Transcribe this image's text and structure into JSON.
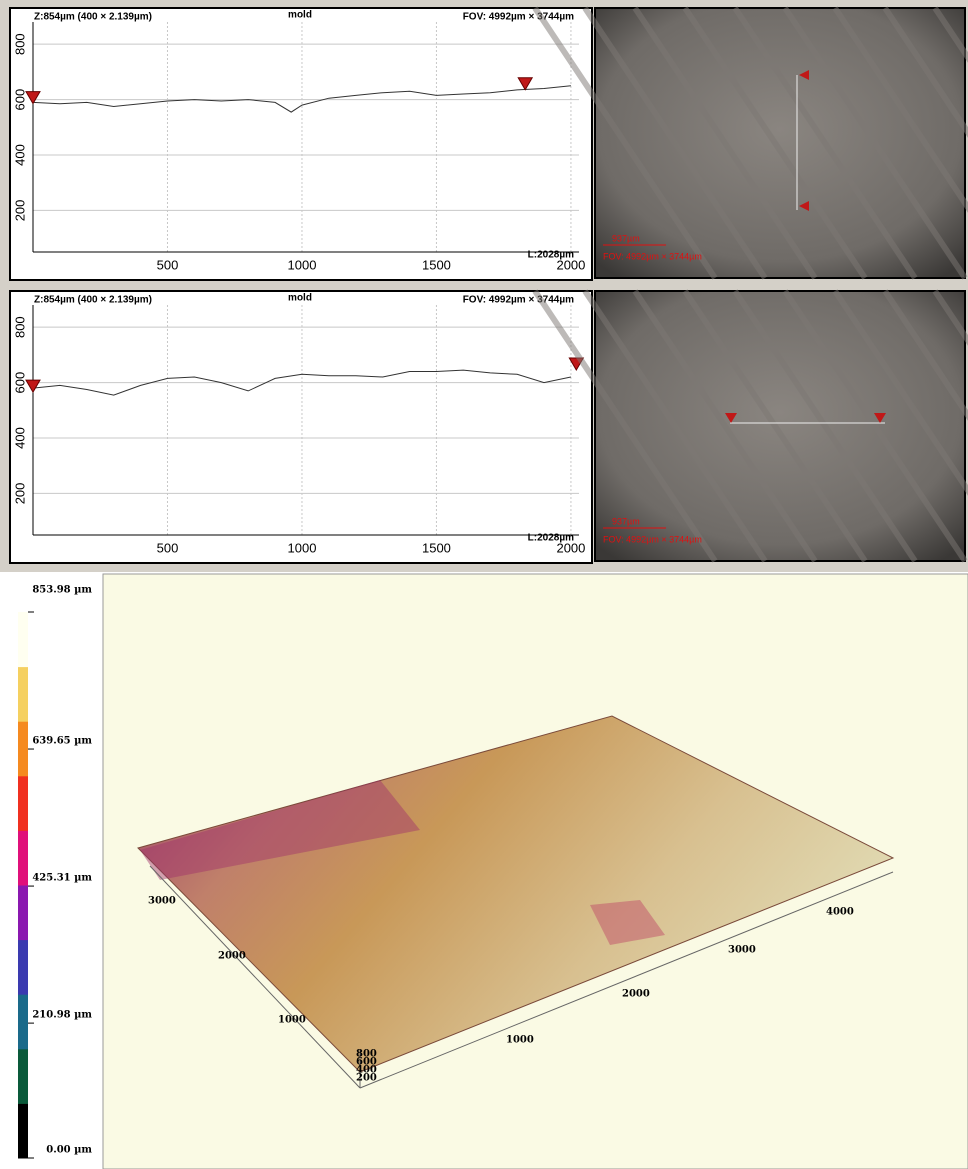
{
  "chart_data": [
    {
      "type": "line",
      "header_left": "Z:854µm (400 × 2.139µm)",
      "title": "mold",
      "header_right": "FOV: 4992µm × 3744µm",
      "length_label": "L:2028µm",
      "x": [
        0,
        100,
        200,
        300,
        400,
        500,
        600,
        700,
        800,
        900,
        960,
        1000,
        1100,
        1200,
        1300,
        1400,
        1500,
        1600,
        1700,
        1800,
        1900,
        2000
      ],
      "values": [
        590,
        585,
        590,
        575,
        585,
        595,
        600,
        595,
        600,
        590,
        555,
        580,
        605,
        615,
        625,
        630,
        615,
        620,
        625,
        635,
        640,
        650
      ],
      "color": "#333333",
      "cursors": [
        {
          "x": 0,
          "y": 600
        },
        {
          "x": 1830,
          "y": 650
        }
      ],
      "xlim": [
        0,
        2030
      ],
      "ylim": [
        50,
        880
      ],
      "xticks": [
        500,
        1000,
        1500,
        2000
      ],
      "yticks": [
        200,
        400,
        600,
        800
      ],
      "grid": true
    },
    {
      "type": "line",
      "header_left": "Z:854µm (400 × 2.139µm)",
      "title": "mold",
      "header_right": "FOV: 4992µm × 3744µm",
      "length_label": "L:2028µm",
      "x": [
        0,
        100,
        200,
        300,
        400,
        500,
        600,
        700,
        800,
        900,
        1000,
        1100,
        1200,
        1300,
        1400,
        1500,
        1600,
        1700,
        1800,
        1900,
        2000
      ],
      "values": [
        580,
        590,
        575,
        555,
        590,
        615,
        620,
        600,
        570,
        615,
        630,
        625,
        625,
        620,
        640,
        640,
        645,
        635,
        630,
        600,
        620
      ],
      "color": "#333333",
      "cursors": [
        {
          "x": 0,
          "y": 580
        },
        {
          "x": 2020,
          "y": 660
        }
      ],
      "xlim": [
        0,
        2030
      ],
      "ylim": [
        50,
        880
      ],
      "xticks": [
        500,
        1000,
        1500,
        2000
      ],
      "yticks": [
        200,
        400,
        600,
        800
      ],
      "grid": true
    },
    {
      "type": "colorbar",
      "ylim": [
        0,
        853.98
      ],
      "yticks": [
        {
          "value": 853.98,
          "label": "853.98 µm"
        },
        {
          "value": 639.65,
          "label": "639.65 µm"
        },
        {
          "value": 425.31,
          "label": "425.31 µm"
        },
        {
          "value": 210.98,
          "label": "210.98 µm"
        },
        {
          "value": 0,
          "label": "0.00 µm"
        }
      ],
      "colors": [
        "#000000",
        "#0a5a3a",
        "#1a6a8a",
        "#3a3ab0",
        "#8a18b0",
        "#e0107a",
        "#f03020",
        "#f58a20",
        "#f5d060",
        "#fffff0"
      ]
    }
  ],
  "images": [
    {
      "scale_label": "937µm",
      "fov_label": "FOV: 4992µm × 3744µm"
    },
    {
      "scale_label": "937µm",
      "fov_label": "FOV: 4992µm × 3744µm"
    }
  ],
  "surface": {
    "x_ticks": [
      1000,
      2000,
      3000,
      4000
    ],
    "y_ticks": [
      3000,
      2000,
      1000
    ],
    "z_ticks": [
      800,
      600,
      400,
      200
    ]
  }
}
